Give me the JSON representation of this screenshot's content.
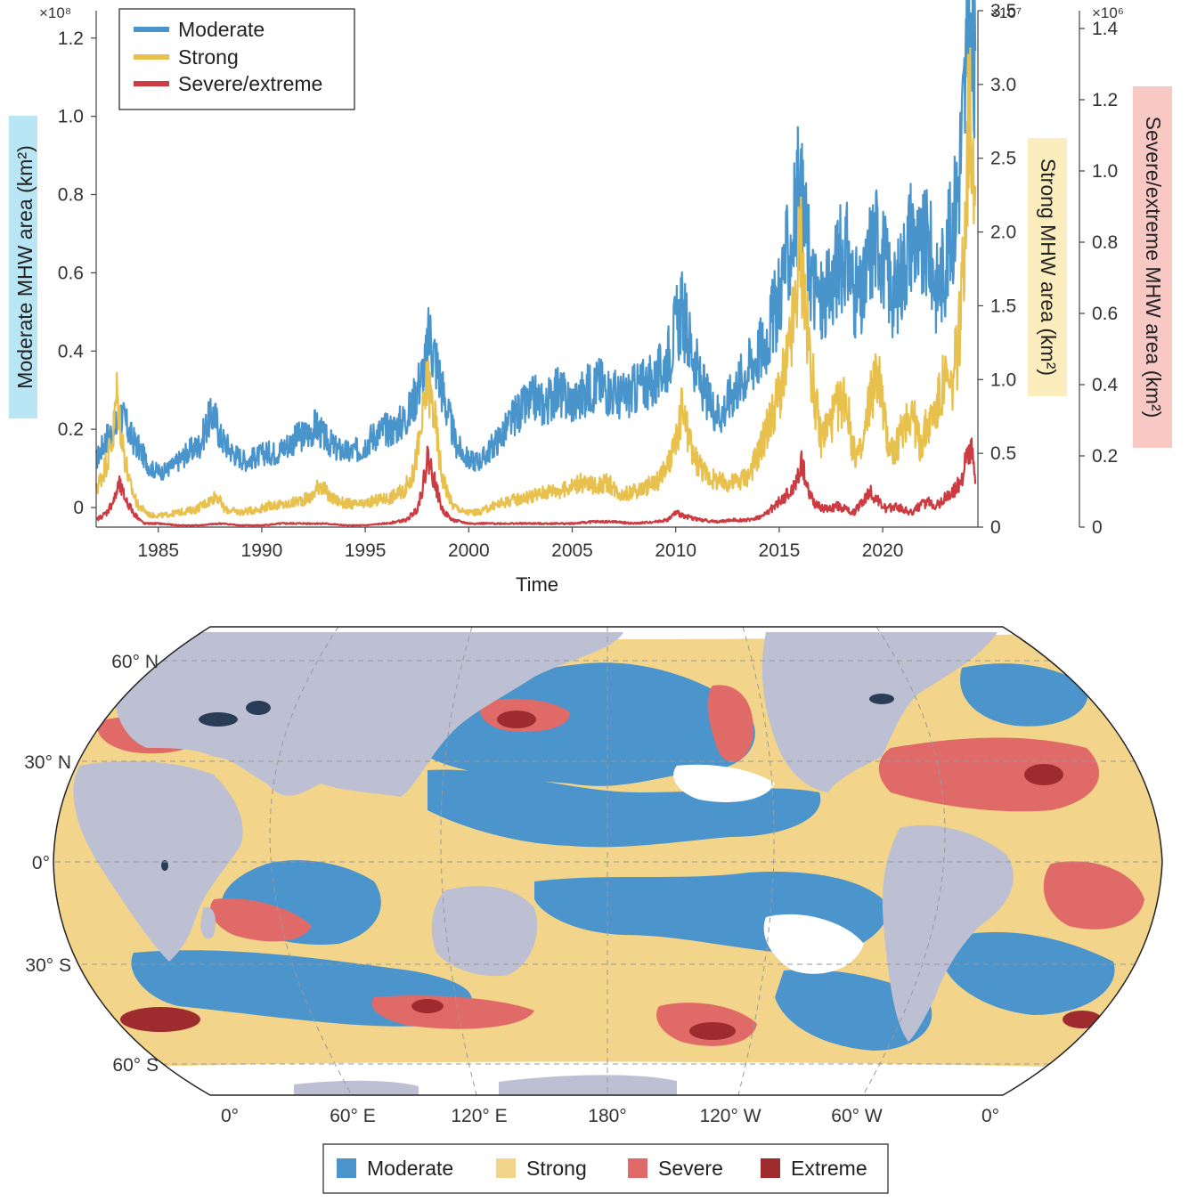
{
  "chart_data": [
    {
      "type": "line",
      "title": "",
      "xlabel": "Time",
      "xlim": [
        1982,
        2024.6
      ],
      "x_ticks": [
        "1985",
        "1990",
        "1995",
        "2000",
        "2005",
        "2010",
        "2015",
        "2020"
      ],
      "grid": false,
      "legend_position": "top-left",
      "axes": [
        {
          "id": "moderate",
          "label": "Moderate MHW area (km²)",
          "multiplier": "×10⁸",
          "ylim": [
            -0.05,
            1.27
          ],
          "ticks": [
            "0",
            "0.2",
            "0.4",
            "0.6",
            "0.8",
            "1.0",
            "1.2"
          ],
          "label_bg": "#b9e6f5"
        },
        {
          "id": "strong",
          "label": "Strong MHW area (km²)",
          "multiplier": "×10⁷",
          "ylim": [
            0,
            3.5
          ],
          "ticks": [
            "0",
            "0.5",
            "1.0",
            "1.5",
            "2.0",
            "2.5",
            "3.0",
            "3.5"
          ],
          "label_bg": "#fbedbe"
        },
        {
          "id": "severe",
          "label": "Severe/extreme MHW area (km²)",
          "multiplier": "×10⁶",
          "ylim": [
            0,
            1.45
          ],
          "ticks": [
            "0",
            "0.2",
            "0.4",
            "0.6",
            "0.8",
            "1.0",
            "1.2",
            "1.4"
          ],
          "label_bg": "#f8c8c4"
        }
      ],
      "series": [
        {
          "name": "Moderate",
          "axis": "moderate",
          "color": "#4a94cc",
          "x": [
            1982.0,
            1982.5,
            1982.9,
            1983.2,
            1983.7,
            1984.2,
            1984.6,
            1985.2,
            1985.8,
            1986.4,
            1987.0,
            1987.4,
            1987.7,
            1988.0,
            1988.6,
            1989.2,
            1989.8,
            1990.2,
            1990.7,
            1991.2,
            1991.8,
            1992.3,
            1992.6,
            1993.0,
            1993.6,
            1994.2,
            1994.8,
            1995.3,
            1995.9,
            1996.3,
            1996.8,
            1997.2,
            1997.6,
            1997.9,
            1998.1,
            1998.4,
            1998.9,
            1999.4,
            2000.0,
            2000.6,
            2001.2,
            2001.8,
            2002.3,
            2002.8,
            2003.2,
            2003.7,
            2004.2,
            2004.7,
            2005.2,
            2005.7,
            2006.3,
            2006.8,
            2007.4,
            2008.0,
            2008.5,
            2009.0,
            2009.6,
            2010.0,
            2010.3,
            2010.7,
            2011.2,
            2011.7,
            2012.2,
            2012.8,
            2013.3,
            2013.8,
            2014.3,
            2014.8,
            2015.2,
            2015.6,
            2015.9,
            2016.2,
            2016.6,
            2017.0,
            2017.4,
            2017.8,
            2018.2,
            2018.6,
            2019.0,
            2019.4,
            2019.8,
            2020.2,
            2020.6,
            2021.0,
            2021.4,
            2021.8,
            2022.2,
            2022.6,
            2023.0,
            2023.3,
            2023.6,
            2023.9,
            2024.1,
            2024.3,
            2024.5
          ],
          "values": [
            0.12,
            0.18,
            0.2,
            0.24,
            0.18,
            0.14,
            0.1,
            0.09,
            0.11,
            0.14,
            0.16,
            0.22,
            0.24,
            0.18,
            0.14,
            0.12,
            0.13,
            0.14,
            0.14,
            0.16,
            0.18,
            0.19,
            0.21,
            0.18,
            0.15,
            0.14,
            0.15,
            0.18,
            0.2,
            0.2,
            0.22,
            0.25,
            0.32,
            0.36,
            0.44,
            0.38,
            0.26,
            0.16,
            0.12,
            0.12,
            0.16,
            0.2,
            0.24,
            0.26,
            0.28,
            0.26,
            0.3,
            0.28,
            0.27,
            0.3,
            0.32,
            0.3,
            0.28,
            0.3,
            0.32,
            0.32,
            0.38,
            0.46,
            0.5,
            0.42,
            0.32,
            0.26,
            0.24,
            0.3,
            0.34,
            0.38,
            0.42,
            0.5,
            0.6,
            0.68,
            0.8,
            0.74,
            0.58,
            0.52,
            0.54,
            0.62,
            0.66,
            0.56,
            0.52,
            0.66,
            0.7,
            0.6,
            0.54,
            0.62,
            0.72,
            0.64,
            0.68,
            0.56,
            0.62,
            0.7,
            0.8,
            1.0,
            1.18,
            1.12,
            1.06
          ]
        },
        {
          "name": "Strong",
          "axis": "strong",
          "color": "#e8c04e",
          "x": [
            1982.0,
            1982.4,
            1982.8,
            1983.0,
            1983.3,
            1983.6,
            1984.0,
            1984.6,
            1985.3,
            1986.0,
            1986.8,
            1987.5,
            1987.8,
            1988.2,
            1989.0,
            1989.8,
            1990.5,
            1991.2,
            1991.8,
            1992.4,
            1992.8,
            1993.3,
            1994.0,
            1994.8,
            1995.5,
            1996.2,
            1996.8,
            1997.3,
            1997.7,
            1998.0,
            1998.3,
            1998.7,
            1999.2,
            1999.8,
            2000.5,
            2001.3,
            2002.0,
            2002.7,
            2003.3,
            2004.0,
            2004.6,
            2005.3,
            2006.0,
            2006.7,
            2007.4,
            2008.2,
            2009.0,
            2009.6,
            2010.0,
            2010.3,
            2010.8,
            2011.5,
            2012.2,
            2012.8,
            2013.5,
            2014.0,
            2014.5,
            2015.0,
            2015.4,
            2015.8,
            2016.0,
            2016.3,
            2016.7,
            2017.0,
            2017.4,
            2017.8,
            2018.2,
            2018.6,
            2019.0,
            2019.4,
            2019.8,
            2020.2,
            2020.6,
            2021.0,
            2021.4,
            2021.8,
            2022.2,
            2022.6,
            2023.0,
            2023.3,
            2023.6,
            2023.8,
            2024.0,
            2024.2,
            2024.4,
            2024.5
          ],
          "values": [
            0.25,
            0.4,
            0.6,
            0.9,
            0.55,
            0.3,
            0.15,
            0.08,
            0.08,
            0.1,
            0.12,
            0.18,
            0.22,
            0.12,
            0.1,
            0.12,
            0.15,
            0.15,
            0.18,
            0.2,
            0.3,
            0.2,
            0.16,
            0.15,
            0.18,
            0.2,
            0.24,
            0.35,
            0.65,
            1.0,
            0.8,
            0.35,
            0.15,
            0.1,
            0.1,
            0.15,
            0.18,
            0.2,
            0.22,
            0.25,
            0.25,
            0.3,
            0.28,
            0.3,
            0.22,
            0.25,
            0.3,
            0.4,
            0.55,
            0.8,
            0.5,
            0.35,
            0.3,
            0.3,
            0.35,
            0.5,
            0.7,
            0.9,
            1.1,
            1.5,
            2.0,
            1.4,
            0.9,
            0.6,
            0.7,
            0.8,
            0.9,
            0.5,
            0.5,
            0.9,
            1.05,
            0.6,
            0.5,
            0.7,
            0.8,
            0.55,
            0.7,
            0.8,
            1.0,
            0.9,
            1.2,
            1.5,
            2.2,
            2.9,
            2.6,
            2.0
          ]
        },
        {
          "name": "Severe/extreme",
          "axis": "severe",
          "color": "#cc3b41",
          "x": [
            1982.0,
            1982.5,
            1982.9,
            1983.1,
            1983.4,
            1983.8,
            1984.3,
            1985.0,
            1986.0,
            1987.0,
            1988.0,
            1989.0,
            1990.0,
            1991.0,
            1992.0,
            1993.0,
            1994.0,
            1995.0,
            1996.0,
            1997.0,
            1997.5,
            1997.8,
            1998.0,
            1998.3,
            1998.7,
            1999.2,
            2000.0,
            2001.0,
            2002.0,
            2003.0,
            2004.0,
            2005.0,
            2006.0,
            2007.0,
            2008.0,
            2009.0,
            2009.6,
            2010.0,
            2010.5,
            2011.2,
            2012.0,
            2012.8,
            2013.5,
            2014.2,
            2014.8,
            2015.2,
            2015.6,
            2015.9,
            2016.1,
            2016.4,
            2016.8,
            2017.3,
            2017.8,
            2018.2,
            2018.6,
            2019.0,
            2019.4,
            2019.8,
            2020.2,
            2020.6,
            2021.0,
            2021.4,
            2021.8,
            2022.2,
            2022.6,
            2023.0,
            2023.4,
            2023.7,
            2023.9,
            2024.1,
            2024.3,
            2024.5
          ],
          "values": [
            0.02,
            0.04,
            0.08,
            0.12,
            0.08,
            0.04,
            0.01,
            0.01,
            0.005,
            0.005,
            0.01,
            0.005,
            0.005,
            0.01,
            0.01,
            0.01,
            0.005,
            0.005,
            0.01,
            0.02,
            0.05,
            0.12,
            0.2,
            0.14,
            0.05,
            0.02,
            0.01,
            0.01,
            0.01,
            0.01,
            0.01,
            0.01,
            0.015,
            0.015,
            0.01,
            0.015,
            0.02,
            0.04,
            0.03,
            0.02,
            0.015,
            0.02,
            0.02,
            0.03,
            0.06,
            0.08,
            0.1,
            0.14,
            0.18,
            0.1,
            0.06,
            0.05,
            0.06,
            0.05,
            0.04,
            0.07,
            0.1,
            0.07,
            0.05,
            0.06,
            0.05,
            0.04,
            0.06,
            0.07,
            0.06,
            0.08,
            0.1,
            0.12,
            0.16,
            0.2,
            0.22,
            0.1
          ]
        }
      ]
    },
    {
      "type": "heatmap",
      "title": "",
      "lat_ticks": [
        "60° N",
        "30° N",
        "0°",
        "30° S",
        "60° S"
      ],
      "lon_ticks": [
        "0°",
        "60° E",
        "120° E",
        "180°",
        "120° W",
        "60° W",
        "0°"
      ],
      "categories": [
        "Moderate",
        "Strong",
        "Severe",
        "Extreme"
      ],
      "colors": {
        "Moderate": "#4c94cc",
        "Strong": "#f2d58a",
        "Severe": "#e06a68",
        "Extreme": "#9e2b2e",
        "land": "#bcc0d2",
        "lakes": "#2b3d56",
        "ice": "#ffffff"
      },
      "legend_position": "bottom-center"
    }
  ]
}
